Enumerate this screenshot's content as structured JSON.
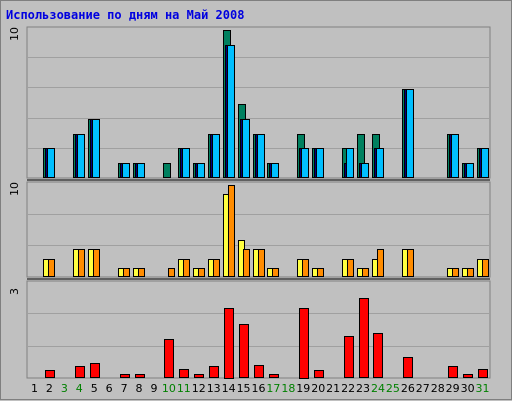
{
  "title": "Использование по дням на Май 2008",
  "chart_data": [
    {
      "type": "bar",
      "panel": "top",
      "ymax_label": "10",
      "ylim": [
        0,
        10
      ],
      "categories": [
        "1",
        "2",
        "3",
        "4",
        "5",
        "6",
        "7",
        "8",
        "9",
        "10",
        "11",
        "12",
        "13",
        "14",
        "15",
        "16",
        "17",
        "18",
        "19",
        "20",
        "21",
        "22",
        "23",
        "24",
        "25",
        "26",
        "27",
        "28",
        "29",
        "30",
        "31"
      ],
      "weekend_days": [
        "3",
        "4",
        "10",
        "11",
        "17",
        "18",
        "24",
        "25",
        "31"
      ],
      "series": [
        {
          "color": "#00805f",
          "values": [
            0,
            2,
            0,
            3,
            4,
            0,
            1,
            1,
            0,
            1,
            2,
            1,
            3,
            10,
            5,
            3,
            1,
            0,
            3,
            2,
            0,
            2,
            3,
            3,
            0,
            6,
            0,
            0,
            3,
            1,
            2
          ]
        },
        {
          "color": "#000080",
          "values": [
            0,
            2,
            0,
            3,
            4,
            0,
            1,
            1,
            0,
            0,
            2,
            1,
            3,
            9,
            4,
            3,
            1,
            0,
            2,
            2,
            0,
            1,
            1,
            2,
            0,
            6,
            0,
            0,
            3,
            1,
            2
          ]
        },
        {
          "color": "#00bfff",
          "values": [
            0,
            2,
            0,
            3,
            4,
            0,
            1,
            1,
            0,
            0,
            2,
            1,
            3,
            9,
            4,
            3,
            1,
            0,
            2,
            2,
            0,
            2,
            1,
            2,
            0,
            6,
            0,
            0,
            3,
            1,
            2
          ]
        }
      ]
    },
    {
      "type": "bar",
      "panel": "middle",
      "ymax_label": "10",
      "ylim": [
        0,
        10
      ],
      "categories": [
        "1",
        "2",
        "3",
        "4",
        "5",
        "6",
        "7",
        "8",
        "9",
        "10",
        "11",
        "12",
        "13",
        "14",
        "15",
        "16",
        "17",
        "18",
        "19",
        "20",
        "21",
        "22",
        "23",
        "24",
        "25",
        "26",
        "27",
        "28",
        "29",
        "30",
        "31"
      ],
      "series": [
        {
          "color": "#ffff40",
          "values": [
            0,
            2,
            0,
            3,
            3,
            0,
            1,
            1,
            0,
            0,
            2,
            1,
            2,
            9,
            4,
            3,
            1,
            0,
            2,
            1,
            0,
            2,
            1,
            2,
            0,
            3,
            0,
            0,
            1,
            1,
            2
          ]
        },
        {
          "color": "#ff8c00",
          "values": [
            0,
            2,
            0,
            3,
            3,
            0,
            1,
            1,
            0,
            1,
            2,
            1,
            2,
            10,
            3,
            3,
            1,
            0,
            2,
            1,
            0,
            2,
            1,
            3,
            0,
            3,
            0,
            0,
            1,
            1,
            2
          ]
        }
      ]
    },
    {
      "type": "bar",
      "panel": "bottom",
      "ymax_label": "3",
      "ylim": [
        0,
        3
      ],
      "categories": [
        "1",
        "2",
        "3",
        "4",
        "5",
        "6",
        "7",
        "8",
        "9",
        "10",
        "11",
        "12",
        "13",
        "14",
        "15",
        "16",
        "17",
        "18",
        "19",
        "20",
        "21",
        "22",
        "23",
        "24",
        "25",
        "26",
        "27",
        "28",
        "29",
        "30",
        "31"
      ],
      "series": [
        {
          "color": "#ff0000",
          "values": [
            0,
            0.25,
            0,
            0.38,
            0.48,
            0,
            0.14,
            0.14,
            0,
            1.25,
            0.28,
            0.14,
            0.38,
            2.25,
            1.72,
            0.4,
            0.14,
            0,
            2.25,
            0.25,
            0,
            1.35,
            2.55,
            1.45,
            0,
            0.68,
            0,
            0,
            0.38,
            0.12,
            0.28
          ]
        }
      ]
    }
  ]
}
